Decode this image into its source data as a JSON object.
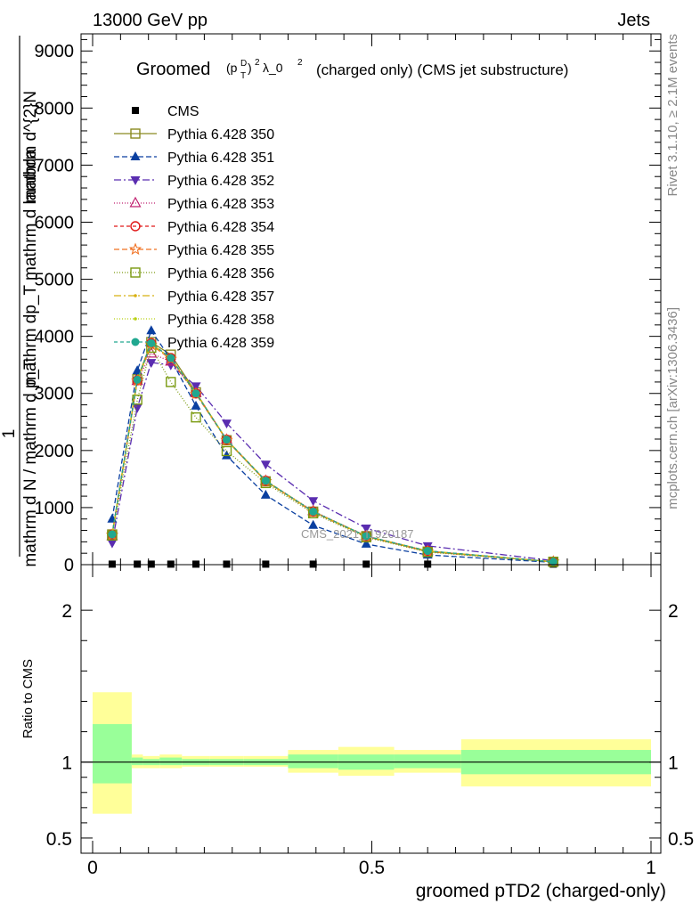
{
  "header": {
    "energy_label": "13000 GeV pp",
    "category_label": "Jets"
  },
  "side": {
    "rivet_label": "Rivet 3.1.10, ≥ 2.1M events",
    "mcplots_label": "mcplots.cern.ch [arXiv:1306.3436]"
  },
  "chart_data": [
    {
      "type": "line",
      "title": "(charged only) (CMS jet substructure)",
      "title_prefix": "Groomed",
      "title_math": "(p_T^D)^2 λ_0^2",
      "ylabel": "1 / mathrm d N / mathrm d p_T mathrm d lambda mathrm dN / mathrm d p_T",
      "ylabel_top": "mathrm d^{2}N",
      "ylabel_mid": "mathrm dp_T mathrm d lambda",
      "ylabel_one": "1",
      "ylabel_bottom": "mathrm d N / mathrm d p_T",
      "ylim": [
        0,
        9300
      ],
      "yticks": [
        0,
        1000,
        2000,
        3000,
        4000,
        5000,
        6000,
        7000,
        8000,
        9000
      ],
      "ytick_labels": [
        "0",
        "1000",
        "2000",
        "3000",
        "4000",
        "5000",
        "6000",
        "7000",
        "8000",
        "9000"
      ],
      "xlim": [
        0,
        1
      ],
      "watermark": "CMS_2021_I1920187",
      "legend_position": "top-left",
      "x": [
        0.035,
        0.08,
        0.105,
        0.14,
        0.185,
        0.24,
        0.31,
        0.395,
        0.49,
        0.6,
        0.825
      ],
      "series": [
        {
          "name": "CMS",
          "color": "#000000",
          "dash": "",
          "marker": "filled-square",
          "values": [
            9,
            9,
            9,
            9,
            9,
            9,
            9,
            9,
            9,
            9,
            9
          ]
        },
        {
          "name": "Pythia 6.428 350",
          "color": "#8a8a20",
          "dash": "",
          "marker": "open-square",
          "values": [
            530,
            3250,
            3900,
            3680,
            3020,
            2180,
            1460,
            930,
            500,
            230,
            50
          ]
        },
        {
          "name": "Pythia 6.428 351",
          "color": "#0a3fa0",
          "dash": "6,3",
          "marker": "filled-triangle-up",
          "values": [
            800,
            3400,
            4100,
            3600,
            2780,
            1910,
            1220,
            690,
            360,
            170,
            40
          ]
        },
        {
          "name": "Pythia 6.428 352",
          "color": "#5a2db0",
          "dash": "8,3,2,3",
          "marker": "filled-triangle-down",
          "values": [
            380,
            2750,
            3540,
            3500,
            3130,
            2480,
            1760,
            1120,
            640,
            330,
            70
          ]
        },
        {
          "name": "Pythia 6.428 353",
          "color": "#c02070",
          "dash": "1,2",
          "marker": "open-triangle-up",
          "values": [
            500,
            3220,
            3700,
            3560,
            3010,
            2190,
            1470,
            940,
            500,
            240,
            50
          ]
        },
        {
          "name": "Pythia 6.428 354",
          "color": "#e01818",
          "dash": "4,3",
          "marker": "open-circle",
          "values": [
            530,
            3230,
            3880,
            3620,
            3000,
            2190,
            1470,
            930,
            500,
            240,
            50
          ]
        },
        {
          "name": "Pythia 6.428 355",
          "color": "#f07020",
          "dash": "6,3",
          "marker": "open-star",
          "values": [
            520,
            3220,
            3850,
            3600,
            2990,
            2180,
            1460,
            920,
            490,
            230,
            50
          ]
        },
        {
          "name": "Pythia 6.428 356",
          "color": "#7a9a10",
          "dash": "1,2",
          "marker": "open-square",
          "values": [
            510,
            2890,
            3800,
            3200,
            2580,
            1990,
            1430,
            900,
            480,
            220,
            50
          ]
        },
        {
          "name": "Pythia 6.428 357",
          "color": "#d8b010",
          "dash": "8,3,2,3",
          "marker": "small-dot",
          "values": [
            520,
            3230,
            3870,
            3610,
            3010,
            2190,
            1470,
            930,
            500,
            240,
            50
          ]
        },
        {
          "name": "Pythia 6.428 358",
          "color": "#b8d010",
          "dash": "1,2",
          "marker": "small-dot",
          "values": [
            520,
            3240,
            3880,
            3620,
            3010,
            2190,
            1470,
            930,
            500,
            240,
            50
          ]
        },
        {
          "name": "Pythia 6.428 359",
          "color": "#20a890",
          "dash": "4,3",
          "marker": "filled-circle",
          "values": [
            530,
            3240,
            3880,
            3620,
            3000,
            2190,
            1470,
            930,
            500,
            240,
            50
          ]
        }
      ]
    },
    {
      "type": "area",
      "ylabel": "Ratio to CMS",
      "xlabel": "groomed pTD2 (charged-only)",
      "ylim": [
        0.4,
        2.3
      ],
      "yticks": [
        0.5,
        1,
        2
      ],
      "ytick_labels": [
        "0.5",
        "1",
        "2"
      ],
      "xticks": [
        0,
        0.5,
        1
      ],
      "xtick_labels": [
        "0",
        "0.5",
        "1"
      ],
      "reference": 1,
      "bins": [
        {
          "x0": 0.0,
          "x1": 0.07,
          "inner": [
            0.86,
            1.25
          ],
          "outer": [
            0.66,
            1.46
          ]
        },
        {
          "x0": 0.07,
          "x1": 0.09,
          "inner": [
            0.98,
            1.03
          ],
          "outer": [
            0.96,
            1.05
          ]
        },
        {
          "x0": 0.09,
          "x1": 0.12,
          "inner": [
            0.98,
            1.02
          ],
          "outer": [
            0.96,
            1.04
          ]
        },
        {
          "x0": 0.12,
          "x1": 0.16,
          "inner": [
            0.98,
            1.03
          ],
          "outer": [
            0.96,
            1.05
          ]
        },
        {
          "x0": 0.16,
          "x1": 0.21,
          "inner": [
            0.98,
            1.02
          ],
          "outer": [
            0.97,
            1.04
          ]
        },
        {
          "x0": 0.21,
          "x1": 0.27,
          "inner": [
            0.98,
            1.02
          ],
          "outer": [
            0.97,
            1.04
          ]
        },
        {
          "x0": 0.27,
          "x1": 0.35,
          "inner": [
            0.98,
            1.02
          ],
          "outer": [
            0.97,
            1.04
          ]
        },
        {
          "x0": 0.35,
          "x1": 0.44,
          "inner": [
            0.96,
            1.05
          ],
          "outer": [
            0.93,
            1.08
          ]
        },
        {
          "x0": 0.44,
          "x1": 0.54,
          "inner": [
            0.95,
            1.05
          ],
          "outer": [
            0.91,
            1.1
          ]
        },
        {
          "x0": 0.54,
          "x1": 0.66,
          "inner": [
            0.96,
            1.05
          ],
          "outer": [
            0.93,
            1.08
          ]
        },
        {
          "x0": 0.66,
          "x1": 1.0,
          "inner": [
            0.92,
            1.08
          ],
          "outer": [
            0.84,
            1.15
          ]
        }
      ],
      "band_colors": {
        "inner": "#99ff99",
        "outer": "#ffff99"
      }
    }
  ]
}
